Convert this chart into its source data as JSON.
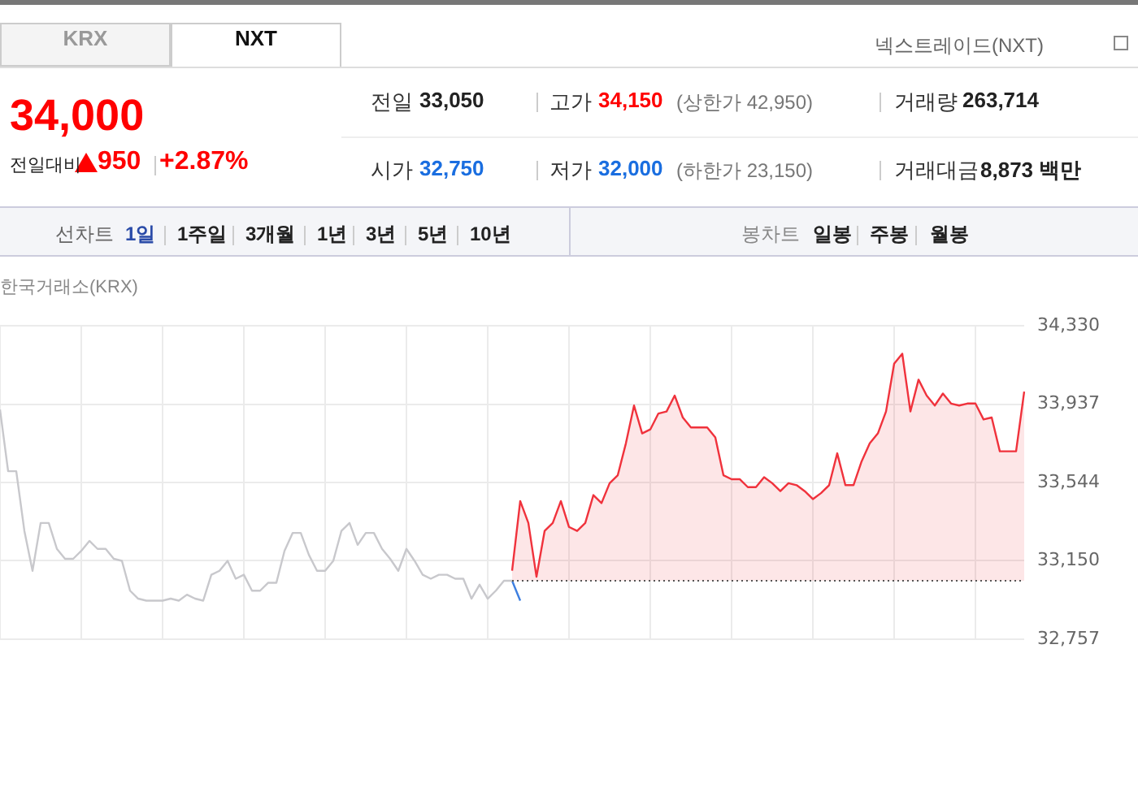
{
  "chart_data": {
    "type": "line",
    "categories": [
      null,
      null,
      null,
      null,
      null,
      null,
      null,
      null,
      null,
      null,
      null,
      null,
      null,
      null,
      null,
      null,
      null,
      null,
      null,
      null,
      null,
      null,
      null,
      null,
      null,
      null,
      null,
      null,
      null,
      null,
      null,
      null,
      null,
      null,
      null,
      null,
      null,
      null,
      null,
      null,
      null,
      null,
      null,
      null,
      null,
      null,
      null,
      null,
      null,
      null,
      null,
      null,
      null,
      null,
      null,
      null,
      null,
      null,
      null,
      null,
      null,
      null,
      null,
      null,
      null,
      null,
      null,
      null,
      null,
      null,
      null,
      null,
      null,
      null,
      null,
      null,
      null,
      null,
      null,
      null,
      null,
      null,
      null,
      null,
      null,
      null,
      null,
      null,
      null,
      null,
      null,
      null,
      null,
      null,
      null,
      null,
      null,
      null,
      null,
      null,
      null,
      null,
      null,
      null,
      null,
      null,
      null,
      null,
      null,
      null,
      null,
      null,
      null,
      null,
      null,
      null,
      null,
      null,
      null,
      null,
      null,
      null,
      null,
      null,
      null,
      null,
      null
    ],
    "series": [
      {
        "type": "line",
        "color": "#c8c8cc",
        "values": [
          33910,
          33600,
          33600,
          33300,
          33100,
          33340,
          33340,
          33210,
          33160,
          33160,
          33200,
          33250,
          33210,
          33210,
          33160,
          33150,
          33000,
          32960,
          32950,
          32950,
          32950,
          32960,
          32950,
          32980,
          32960,
          32950,
          33080,
          33100,
          33150,
          33060,
          33080,
          33000,
          33000,
          33040,
          33040,
          33200,
          33290,
          33290,
          33180,
          33100,
          33100,
          33150,
          33300,
          33340,
          33230,
          33290,
          33290,
          33210,
          33160,
          33100,
          33210,
          33150,
          33080,
          33060,
          33080,
          33080,
          33060,
          33060,
          32960,
          33030,
          32960,
          33000,
          33050,
          33050,
          null,
          null,
          null,
          null,
          null,
          null,
          null,
          null,
          null,
          null,
          null,
          null,
          null,
          null,
          null,
          null,
          null,
          null,
          null,
          null,
          null,
          null,
          null,
          null,
          null,
          null,
          null,
          null,
          null,
          null,
          null,
          null,
          null,
          null,
          null,
          null,
          null,
          null,
          null,
          null,
          null,
          null,
          null,
          null,
          null,
          null,
          null,
          null,
          null,
          null,
          null,
          null,
          null,
          null,
          null,
          null,
          null,
          null,
          null,
          null,
          null,
          null,
          null
        ]
      },
      {
        "type": "area",
        "color": "#f0323c",
        "values": [
          null,
          null,
          null,
          null,
          null,
          null,
          null,
          null,
          null,
          null,
          null,
          null,
          null,
          null,
          null,
          null,
          null,
          null,
          null,
          null,
          null,
          null,
          null,
          null,
          null,
          null,
          null,
          null,
          null,
          null,
          null,
          null,
          null,
          null,
          null,
          null,
          null,
          null,
          null,
          null,
          null,
          null,
          null,
          null,
          null,
          null,
          null,
          null,
          null,
          null,
          null,
          null,
          null,
          null,
          null,
          null,
          null,
          null,
          null,
          null,
          null,
          null,
          null,
          33100,
          33450,
          33340,
          33070,
          33300,
          33340,
          33450,
          33320,
          33300,
          33340,
          33480,
          33440,
          33540,
          33580,
          33740,
          33930,
          33790,
          33810,
          33890,
          33900,
          33980,
          33870,
          33820,
          33820,
          33820,
          33770,
          33580,
          33560,
          33560,
          33520,
          33520,
          33570,
          33540,
          33500,
          33540,
          33530,
          33500,
          33460,
          33490,
          33530,
          33690,
          33530,
          33530,
          33650,
          33740,
          33790,
          33900,
          34140,
          34190,
          33900,
          34060,
          33980,
          33930,
          33990,
          33940,
          33930,
          33940,
          33940,
          33860,
          33870,
          33700,
          33700,
          33700,
          34000
        ]
      },
      {
        "type": "line",
        "color": "#3d7fe0",
        "values": [
          null,
          null,
          null,
          null,
          null,
          null,
          null,
          null,
          null,
          null,
          null,
          null,
          null,
          null,
          null,
          null,
          null,
          null,
          null,
          null,
          null,
          null,
          null,
          null,
          null,
          null,
          null,
          null,
          null,
          null,
          null,
          null,
          null,
          null,
          null,
          null,
          null,
          null,
          null,
          null,
          null,
          null,
          null,
          null,
          null,
          null,
          null,
          null,
          null,
          null,
          null,
          null,
          null,
          null,
          null,
          null,
          null,
          null,
          null,
          null,
          null,
          null,
          null,
          33050,
          32950,
          null,
          null,
          null,
          null,
          null,
          null,
          null,
          null,
          null,
          null,
          null,
          null,
          null,
          null,
          null,
          null,
          null,
          null,
          null,
          null,
          null,
          null,
          null,
          null,
          null,
          null,
          null,
          null,
          null,
          null,
          null,
          null,
          null,
          null,
          null,
          null,
          null,
          null,
          null,
          null,
          null,
          null,
          null,
          null,
          null,
          null,
          null,
          null,
          null,
          null,
          null,
          null,
          null,
          null,
          null,
          null,
          null,
          null,
          null,
          null,
          null,
          null
        ]
      }
    ],
    "ylim": [
      32757,
      34330
    ],
    "yticks": [
      {
        "value": 32757,
        "label": "32,757"
      },
      {
        "value": 33150,
        "label": "33,150"
      },
      {
        "value": 33544,
        "label": "33,544"
      },
      {
        "value": 33937,
        "label": "33,937"
      },
      {
        "value": 34330,
        "label": "34,330"
      }
    ],
    "ref_lines": [
      {
        "axis": "y",
        "value": 33050,
        "line_style": "dotted",
        "color": "#555555"
      }
    ],
    "grid": true,
    "legend": false,
    "marker": "none",
    "tick_labels": "y",
    "annotations": [
      "KRX",
      "NXT",
      "넥스트레이드(NXT)",
      "34,000",
      "전일대비",
      "950",
      "+2.87%",
      "전일",
      "33,050",
      "고가",
      "34,150",
      "(상한가 42,950)",
      "거래량",
      "263,714",
      "시가",
      "32,750",
      "저가",
      "32,000",
      "(하한가 23,150)",
      "거래대금",
      "8,873 백만",
      "선차트",
      "1일",
      "1주일",
      "3개월",
      "1년",
      "3년",
      "5년",
      "10년",
      "봉차트",
      "일봉",
      "주봉",
      "월봉",
      "한국거래소(KRX)"
    ]
  }
}
